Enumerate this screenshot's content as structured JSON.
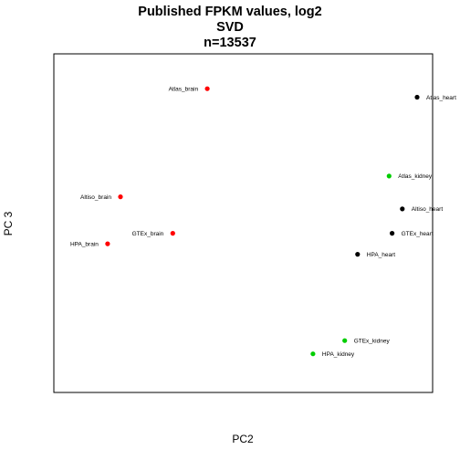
{
  "chart_data": {
    "type": "scatter",
    "title": [
      "Published FPKM values, log2",
      "SVD",
      "n=13537"
    ],
    "xlabel": "PC2",
    "ylabel": "PC 3",
    "xlim": [
      0,
      1
    ],
    "ylim": [
      0,
      1
    ],
    "grid": false,
    "legend": "none",
    "axes_ticks_shown": false,
    "points": [
      {
        "label": "Atlas_brain",
        "x": 0.405,
        "y": 0.897,
        "color": "#ff0000",
        "label_side": "left"
      },
      {
        "label": "Atlas_heart",
        "x": 0.959,
        "y": 0.872,
        "color": "#000000",
        "label_side": "right"
      },
      {
        "label": "Atlas_kidney",
        "x": 0.885,
        "y": 0.639,
        "color": "#00cd00",
        "label_side": "right"
      },
      {
        "label": "Altiso_brain",
        "x": 0.176,
        "y": 0.578,
        "color": "#ff0000",
        "label_side": "left"
      },
      {
        "label": "Altiso_heart",
        "x": 0.92,
        "y": 0.542,
        "color": "#000000",
        "label_side": "right"
      },
      {
        "label": "GTEx_brain",
        "x": 0.314,
        "y": 0.47,
        "color": "#ff0000",
        "label_side": "left"
      },
      {
        "label": "GTEx_heart",
        "x": 0.893,
        "y": 0.47,
        "color": "#000000",
        "label_side": "right"
      },
      {
        "label": "HPA_brain",
        "x": 0.142,
        "y": 0.439,
        "color": "#ff0000",
        "label_side": "left"
      },
      {
        "label": "HPA_heart",
        "x": 0.802,
        "y": 0.408,
        "color": "#000000",
        "label_side": "right"
      },
      {
        "label": "GTEx_kidney",
        "x": 0.768,
        "y": 0.153,
        "color": "#00cd00",
        "label_side": "right"
      },
      {
        "label": "HPA_kidney",
        "x": 0.684,
        "y": 0.114,
        "color": "#00cd00",
        "label_side": "right"
      }
    ]
  }
}
